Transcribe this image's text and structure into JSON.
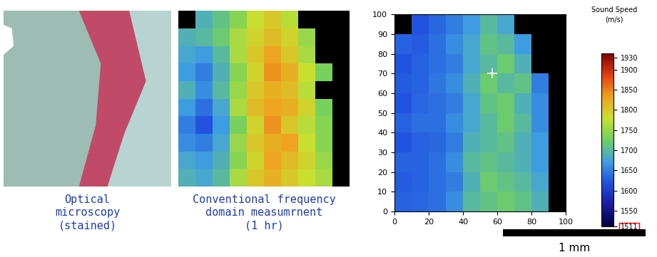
{
  "chart_data": [
    {
      "type": "image",
      "caption": "Optical\nmicroscopy\n(stained)"
    },
    {
      "type": "heatmap",
      "caption": "Conventional frequency\ndomain measumrnent\n(1 hr)",
      "x_edges": [
        0,
        10,
        20,
        30,
        40,
        50,
        60,
        70,
        80,
        90,
        100
      ],
      "y_edges": [
        0,
        10,
        20,
        30,
        40,
        50,
        60,
        70,
        80,
        90,
        100
      ],
      "color_range": [
        1511,
        1940
      ],
      "cells": [
        [
          1690,
          1680,
          1700,
          1760,
          1800,
          1820,
          1800,
          1780,
          1760,
          null
        ],
        [
          1680,
          1670,
          1690,
          1740,
          1790,
          1830,
          1810,
          1790,
          1750,
          null
        ],
        [
          1660,
          1650,
          1680,
          1750,
          1800,
          1820,
          1830,
          1780,
          1740,
          null
        ],
        [
          1650,
          1620,
          1670,
          1730,
          1790,
          1840,
          1800,
          1770,
          1740,
          null
        ],
        [
          1670,
          1640,
          1680,
          1760,
          1810,
          1830,
          1820,
          1790,
          1730,
          null
        ],
        [
          1690,
          1660,
          1700,
          1750,
          1800,
          1820,
          1810,
          1770,
          null,
          null
        ],
        [
          1670,
          1650,
          1690,
          1740,
          1790,
          1840,
          1820,
          1780,
          1730,
          null
        ],
        [
          1680,
          1670,
          1700,
          1760,
          1800,
          1830,
          1800,
          1760,
          null,
          null
        ],
        [
          1690,
          1700,
          1720,
          1760,
          1790,
          1810,
          1790,
          1750,
          null,
          null
        ],
        [
          null,
          1690,
          1710,
          1740,
          1780,
          1800,
          1770,
          null,
          null,
          null
        ]
      ]
    },
    {
      "type": "heatmap",
      "x_edges": [
        0,
        10,
        20,
        30,
        40,
        50,
        60,
        70,
        80,
        90,
        100
      ],
      "y_edges": [
        0,
        10,
        20,
        30,
        40,
        50,
        60,
        70,
        80,
        90,
        100
      ],
      "xlim": [
        0,
        100
      ],
      "ylim": [
        0,
        100
      ],
      "xticks": [
        0,
        20,
        40,
        60,
        80,
        100
      ],
      "yticks": [
        0,
        10,
        20,
        30,
        40,
        50,
        60,
        70,
        80,
        90,
        100
      ],
      "colorbar_title": "Sound Speed\n(m/s)",
      "color_range": [
        1511,
        1940
      ],
      "colorbar_ticks": [
        1511,
        1550,
        1600,
        1650,
        1700,
        1750,
        1800,
        1850,
        1900,
        1930
      ],
      "cursor": {
        "x": 57,
        "y": 70
      },
      "scale_bar_label": "1 mm",
      "cells": [
        [
          1630,
          1635,
          1640,
          1660,
          1700,
          1710,
          1720,
          1710,
          1690,
          null
        ],
        [
          1625,
          1630,
          1640,
          1650,
          1690,
          1720,
          1710,
          1700,
          1680,
          null
        ],
        [
          1630,
          1630,
          1640,
          1660,
          1700,
          1710,
          1700,
          1690,
          1670,
          null
        ],
        [
          1620,
          1630,
          1635,
          1650,
          1690,
          1700,
          1710,
          1690,
          1670,
          null
        ],
        [
          1630,
          1640,
          1640,
          1660,
          1680,
          1700,
          1720,
          1700,
          1660,
          null
        ],
        [
          1620,
          1635,
          1640,
          1650,
          1680,
          1710,
          1720,
          1690,
          1660,
          null
        ],
        [
          1625,
          1630,
          1645,
          1660,
          1690,
          1720,
          1700,
          1710,
          1650,
          null
        ],
        [
          1620,
          1630,
          1640,
          1650,
          1680,
          1700,
          1720,
          1690,
          null,
          null
        ],
        [
          1630,
          1625,
          1640,
          1660,
          1680,
          1710,
          1700,
          1670,
          null,
          null
        ],
        [
          null,
          1620,
          1635,
          1650,
          1670,
          1700,
          1680,
          null,
          null,
          null
        ]
      ]
    }
  ]
}
